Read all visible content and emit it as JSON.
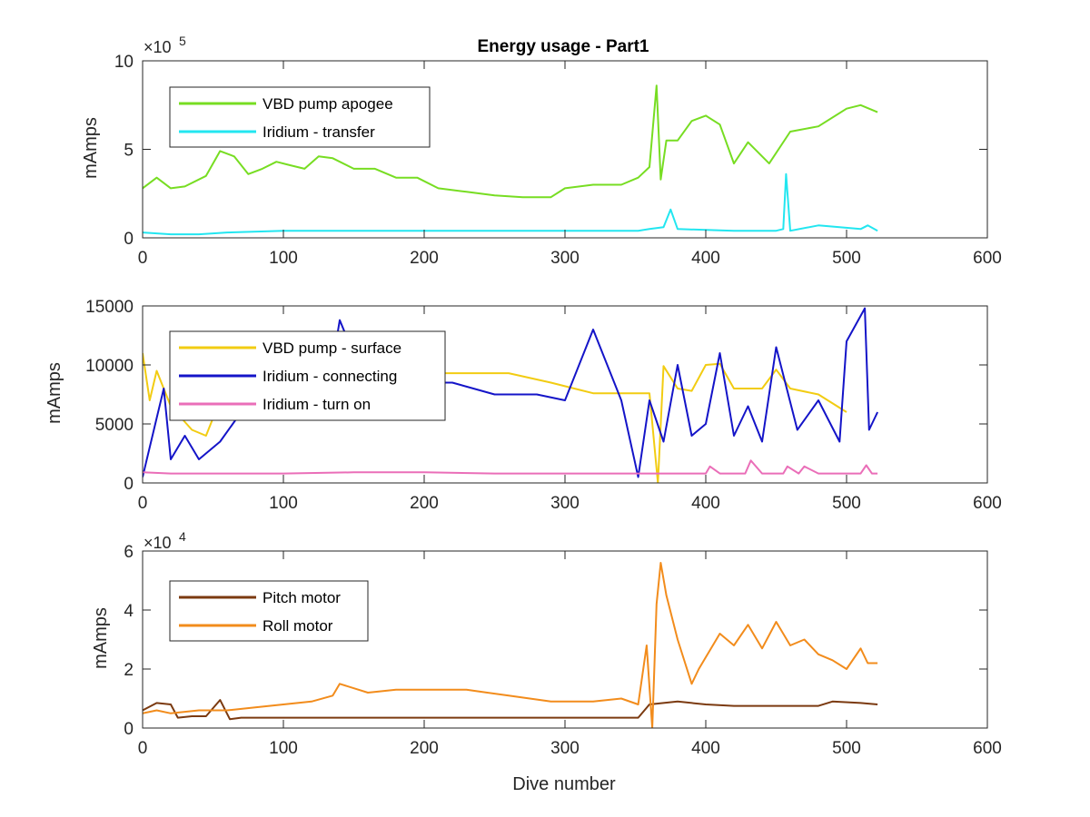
{
  "chart_data": [
    {
      "type": "line",
      "title": "Energy usage - Part1",
      "xlabel": "",
      "ylabel": "mAmps",
      "xlim": [
        0,
        600
      ],
      "ylim": [
        0,
        10
      ],
      "xticks": [
        "0",
        "100",
        "200",
        "300",
        "400",
        "500",
        "600"
      ],
      "yticks": [
        "0",
        "5",
        "10"
      ],
      "y_multiplier_label": "×10^5",
      "exp_base": "×10",
      "exp_power": "5",
      "grid": false,
      "legend_placement": "top-left",
      "series": [
        {
          "name": "VBD pump apogee",
          "color": "#77dd22",
          "x": [
            0,
            10,
            20,
            30,
            45,
            55,
            65,
            75,
            85,
            95,
            105,
            115,
            125,
            135,
            150,
            165,
            180,
            195,
            210,
            230,
            250,
            270,
            290,
            300,
            320,
            340,
            352,
            360,
            365,
            368,
            372,
            380,
            390,
            400,
            410,
            420,
            430,
            445,
            460,
            480,
            500,
            510,
            522
          ],
          "y": [
            2.8,
            3.4,
            2.8,
            2.9,
            3.5,
            4.9,
            4.6,
            3.6,
            3.9,
            4.3,
            4.1,
            3.9,
            4.6,
            4.5,
            3.9,
            3.9,
            3.4,
            3.4,
            2.8,
            2.6,
            2.4,
            2.3,
            2.3,
            2.8,
            3.0,
            3.0,
            3.4,
            4.0,
            8.6,
            3.3,
            5.5,
            5.5,
            6.6,
            6.9,
            6.4,
            4.2,
            5.4,
            4.2,
            6.0,
            6.3,
            7.3,
            7.5,
            7.1
          ]
        },
        {
          "name": "Iridium - transfer",
          "color": "#22e6f0",
          "x": [
            0,
            20,
            40,
            60,
            100,
            150,
            200,
            250,
            300,
            352,
            360,
            370,
            375,
            380,
            420,
            450,
            455,
            457,
            460,
            480,
            510,
            515,
            522
          ],
          "y": [
            0.3,
            0.2,
            0.2,
            0.3,
            0.4,
            0.4,
            0.4,
            0.4,
            0.4,
            0.4,
            0.5,
            0.6,
            1.6,
            0.5,
            0.4,
            0.4,
            0.5,
            3.6,
            0.4,
            0.7,
            0.5,
            0.7,
            0.4
          ]
        }
      ]
    },
    {
      "type": "line",
      "title": "",
      "xlabel": "",
      "ylabel": "mAmps",
      "xlim": [
        0,
        600
      ],
      "ylim": [
        0,
        15000
      ],
      "xticks": [
        "0",
        "100",
        "200",
        "300",
        "400",
        "500",
        "600"
      ],
      "yticks": [
        "0",
        "5000",
        "10000",
        "15000"
      ],
      "grid": false,
      "legend_placement": "top-left",
      "series": [
        {
          "name": "VBD pump - surface",
          "color": "#f2cc12",
          "x": [
            0,
            5,
            10,
            20,
            35,
            45,
            55,
            80,
            120,
            150,
            180,
            200,
            230,
            260,
            290,
            320,
            345,
            352,
            360,
            366,
            370,
            380,
            390,
            400,
            410,
            420,
            440,
            450,
            460,
            480,
            500
          ],
          "y": [
            11000,
            7000,
            9500,
            6500,
            4500,
            4000,
            7000,
            7500,
            8500,
            9000,
            9200,
            9300,
            9300,
            9300,
            8500,
            7600,
            7600,
            7600,
            7600,
            0,
            9900,
            8000,
            7800,
            10000,
            10100,
            8000,
            8000,
            9600,
            8000,
            7500,
            6000
          ]
        },
        {
          "name": "Iridium - connecting",
          "color": "#1414c8",
          "x": [
            0,
            10,
            15,
            20,
            30,
            40,
            55,
            70,
            90,
            110,
            130,
            140,
            160,
            180,
            200,
            220,
            250,
            280,
            300,
            320,
            340,
            352,
            360,
            370,
            380,
            390,
            400,
            410,
            420,
            430,
            440,
            450,
            465,
            480,
            495,
            500,
            513,
            516,
            522
          ],
          "y": [
            500,
            5500,
            8000,
            2000,
            4000,
            2000,
            3500,
            6000,
            9500,
            7000,
            6500,
            13800,
            8000,
            9000,
            8500,
            8500,
            7500,
            7500,
            7000,
            13000,
            7000,
            500,
            7000,
            3500,
            10000,
            4000,
            5000,
            11000,
            4000,
            6500,
            3500,
            11500,
            4500,
            7000,
            3500,
            12000,
            14800,
            4500,
            6000
          ]
        },
        {
          "name": "Iridium - turn on",
          "color": "#ea6eb8",
          "x": [
            0,
            20,
            40,
            60,
            80,
            100,
            150,
            200,
            250,
            300,
            352,
            365,
            400,
            403,
            410,
            428,
            432,
            440,
            455,
            458,
            466,
            470,
            480,
            510,
            514,
            518,
            522
          ],
          "y": [
            900,
            800,
            800,
            800,
            800,
            800,
            900,
            900,
            800,
            800,
            800,
            800,
            800,
            1400,
            800,
            800,
            1900,
            800,
            800,
            1400,
            800,
            1400,
            800,
            800,
            1500,
            800,
            800
          ]
        }
      ]
    },
    {
      "type": "line",
      "title": "",
      "xlabel": "Dive number",
      "ylabel": "mAmps",
      "xlim": [
        0,
        600
      ],
      "ylim": [
        0,
        6
      ],
      "xticks": [
        "0",
        "100",
        "200",
        "300",
        "400",
        "500",
        "600"
      ],
      "yticks": [
        "0",
        "2",
        "4",
        "6"
      ],
      "y_multiplier_label": "×10^4",
      "exp_base": "×10",
      "exp_power": "4",
      "grid": false,
      "legend_placement": "top-left",
      "series": [
        {
          "name": "Pitch motor",
          "color": "#7b3a10",
          "x": [
            0,
            10,
            20,
            25,
            35,
            45,
            55,
            62,
            70,
            100,
            150,
            200,
            250,
            300,
            352,
            360,
            370,
            380,
            400,
            420,
            440,
            460,
            480,
            490,
            510,
            522
          ],
          "y": [
            0.6,
            0.85,
            0.8,
            0.35,
            0.4,
            0.4,
            0.95,
            0.3,
            0.35,
            0.35,
            0.35,
            0.35,
            0.35,
            0.35,
            0.35,
            0.8,
            0.85,
            0.9,
            0.8,
            0.75,
            0.75,
            0.75,
            0.75,
            0.9,
            0.85,
            0.8
          ]
        },
        {
          "name": "Roll motor",
          "color": "#f28c1c",
          "x": [
            0,
            10,
            20,
            40,
            60,
            80,
            100,
            120,
            135,
            140,
            160,
            180,
            200,
            230,
            260,
            290,
            320,
            340,
            352,
            358,
            362,
            365,
            368,
            372,
            380,
            390,
            395,
            400,
            410,
            420,
            430,
            440,
            450,
            460,
            470,
            480,
            490,
            500,
            510,
            515,
            522
          ],
          "y": [
            0.5,
            0.6,
            0.5,
            0.6,
            0.6,
            0.7,
            0.8,
            0.9,
            1.1,
            1.5,
            1.2,
            1.3,
            1.3,
            1.3,
            1.1,
            0.9,
            0.9,
            1.0,
            0.8,
            2.8,
            0,
            4.2,
            5.6,
            4.5,
            3.0,
            1.5,
            2.0,
            2.4,
            3.2,
            2.8,
            3.5,
            2.7,
            3.6,
            2.8,
            3.0,
            2.5,
            2.3,
            2.0,
            2.7,
            2.2,
            2.2
          ]
        }
      ]
    }
  ]
}
